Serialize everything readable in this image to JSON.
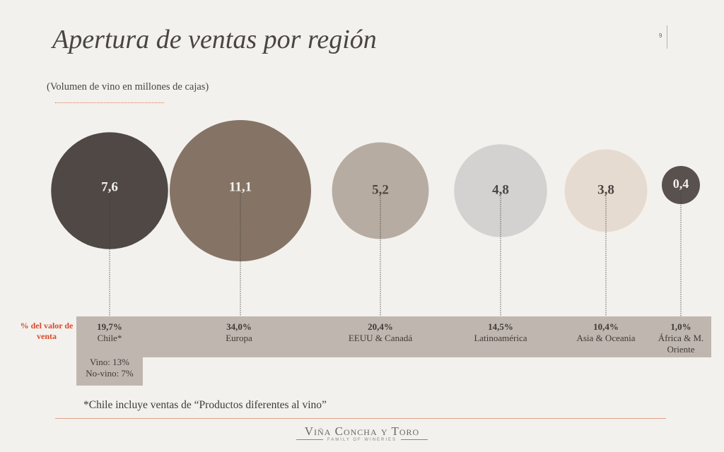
{
  "slide": {
    "title": "Apertura de ventas por región",
    "page_number": "9",
    "subtitle": "(Volumen de vino en millones de cajas)",
    "pct_header": "% del valor de venta",
    "chile_breakdown": [
      "Vino: 13%",
      "No-vino: 7%"
    ],
    "footnote": "*Chile incluye ventas de  “Productos diferentes al vino”",
    "logo_text": "Viña Concha y Toro",
    "logo_tagline": "FAMILY OF WINERIES"
  },
  "chart_data": {
    "type": "bubble",
    "title": "Apertura de ventas por región",
    "subtitle": "(Volumen de vino en millones de cajas)",
    "series": [
      {
        "region": "Chile*",
        "volume": 7.6,
        "volume_label": "7,6",
        "sales_share_pct": 19.7,
        "pct_label": "19,7%",
        "color": "#4f4844",
        "text_color": "#f3f1ed"
      },
      {
        "region": "Europa",
        "volume": 11.1,
        "volume_label": "11,1",
        "sales_share_pct": 34.0,
        "pct_label": "34,0%",
        "color": "#857465",
        "text_color": "#f3f1ed"
      },
      {
        "region": "EEUU & Canadá",
        "volume": 5.2,
        "volume_label": "5,2",
        "sales_share_pct": 20.4,
        "pct_label": "20,4%",
        "color": "#b6aca2",
        "text_color": "#4a4542"
      },
      {
        "region": "Latinoamérica",
        "volume": 4.8,
        "volume_label": "4,8",
        "sales_share_pct": 14.5,
        "pct_label": "14,5%",
        "color": "#d4d2d0",
        "text_color": "#4a4542"
      },
      {
        "region": "Asia & Oceania",
        "volume": 3.8,
        "volume_label": "3,8",
        "sales_share_pct": 10.4,
        "pct_label": "10,4%",
        "color": "#e6dbd1",
        "text_color": "#4a4542"
      },
      {
        "region": "África  & M. Oriente",
        "volume": 0.4,
        "volume_label": "0,4",
        "sales_share_pct": 1.0,
        "pct_label": "1,0%",
        "color": "#59514d",
        "text_color": "#f3f1ed"
      }
    ]
  }
}
